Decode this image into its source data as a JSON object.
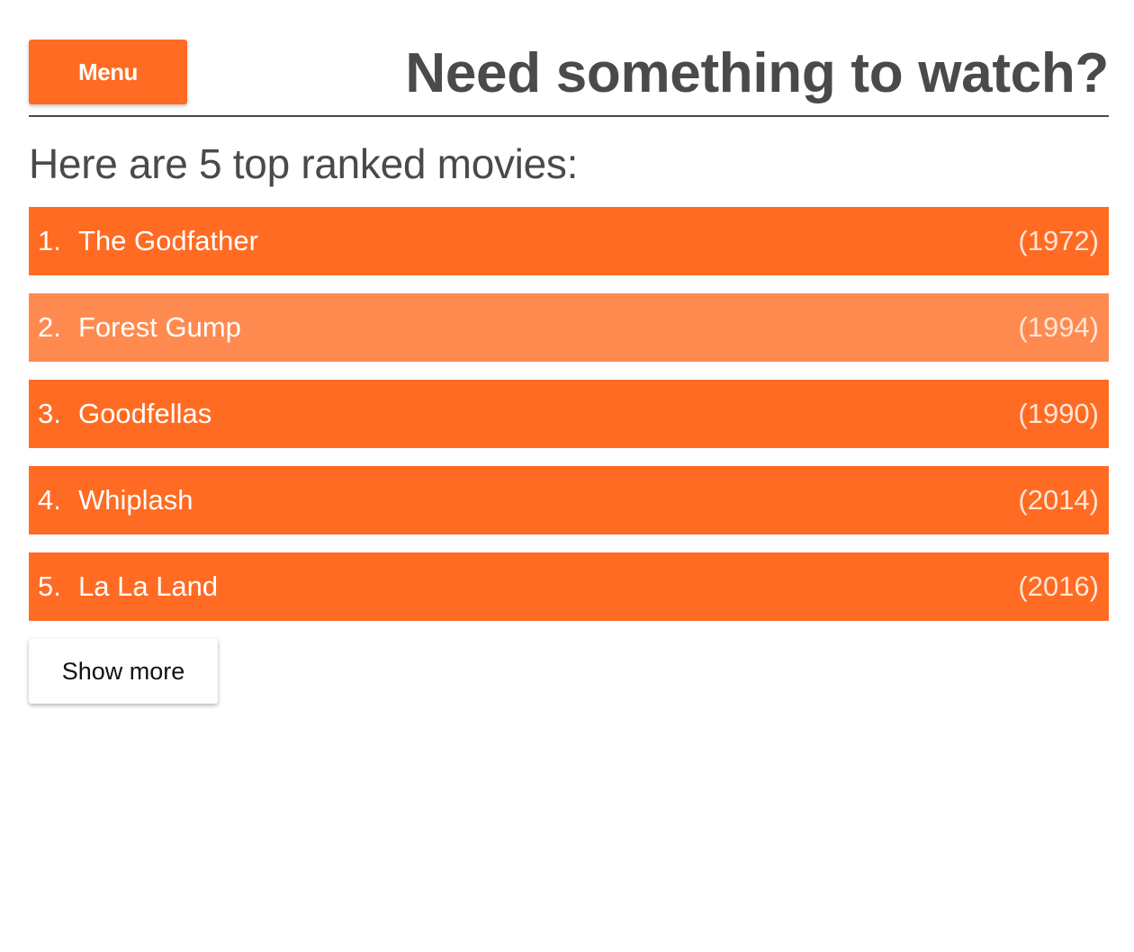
{
  "header": {
    "menu_label": "Menu",
    "title": "Need something to watch?"
  },
  "main": {
    "subtitle": "Here are 5 top ranked movies:",
    "movies": [
      {
        "rank": "1.",
        "title": "The Godfather",
        "year": "(1972)"
      },
      {
        "rank": "2.",
        "title": "Forest Gump",
        "year": "(1994)"
      },
      {
        "rank": "3.",
        "title": "Goodfellas",
        "year": "(1990)"
      },
      {
        "rank": "4.",
        "title": "Whiplash",
        "year": "(2014)"
      },
      {
        "rank": "5.",
        "title": "La La Land",
        "year": "(2016)"
      }
    ],
    "show_more_label": "Show more"
  },
  "colors": {
    "accent": "#ff6b22",
    "accent_hover": "#ff8a50",
    "text": "#4a4a4a"
  }
}
